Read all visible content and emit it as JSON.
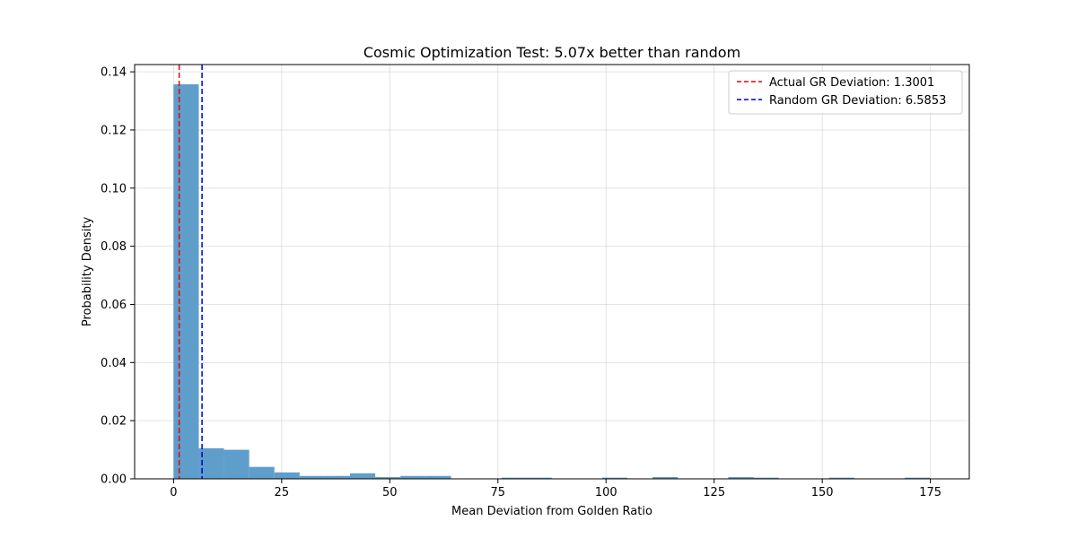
{
  "chart_data": {
    "type": "bar",
    "title": "Cosmic Optimization Test: 5.07x better than random",
    "xlabel": "Mean Deviation from Golden Ratio",
    "ylabel": "Probability Density",
    "xlim": [
      -9,
      184
    ],
    "ylim": [
      0,
      0.1425
    ],
    "x_ticks": [
      0,
      25,
      50,
      75,
      100,
      125,
      150,
      175
    ],
    "y_ticks": [
      0.0,
      0.02,
      0.04,
      0.06,
      0.08,
      0.1,
      0.12,
      0.14
    ],
    "y_tick_labels": [
      "0.00",
      "0.02",
      "0.04",
      "0.06",
      "0.08",
      "0.10",
      "0.12",
      "0.14"
    ],
    "grid": true,
    "legend_position": "top-right",
    "bar_color": "#5f9ecb",
    "histogram": {
      "bin_start": 0,
      "bin_width": 5.83,
      "densities": [
        0.1357,
        0.0105,
        0.01,
        0.0041,
        0.0022,
        0.001,
        0.001,
        0.0019,
        0.0006,
        0.001,
        0.001,
        0,
        0,
        0.0004,
        0.0004,
        0,
        0,
        0.0004,
        0,
        0.0006,
        0,
        0,
        0.0006,
        0.0004,
        0,
        0,
        0.0004,
        0,
        0,
        0.0004
      ]
    },
    "reference_lines": [
      {
        "name": "Actual GR Deviation: 1.3001",
        "x": 1.3001,
        "color": "#e8000b"
      },
      {
        "name": "Random GR Deviation: 6.5853",
        "x": 6.5853,
        "color": "#0000cc"
      }
    ]
  }
}
